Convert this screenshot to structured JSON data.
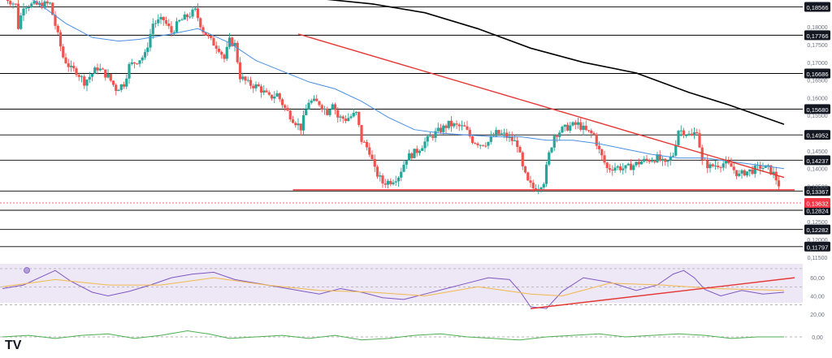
{
  "chart_data": [
    {
      "type": "candlestick",
      "panel": "price",
      "ylim": [
        0.1138,
        0.1876
      ],
      "y_axis_ticks": [
        "0,18000",
        "0,17500",
        "0,17000",
        "0,16500",
        "0,16000",
        "0,15500",
        "0,14500",
        "0,14000",
        "0,13500",
        "0,13000",
        "0,12500",
        "0,12000",
        "0,11500"
      ],
      "levels": [
        {
          "label": "0,18566",
          "value": 0.18566
        },
        {
          "label": "0,17766",
          "value": 0.17766
        },
        {
          "label": "0,16686",
          "value": 0.16686
        },
        {
          "label": "0,15680",
          "value": 0.1568
        },
        {
          "label": "0,14952",
          "value": 0.14952
        },
        {
          "label": "0,14237",
          "value": 0.14237
        },
        {
          "label": "0,13367",
          "value": 0.13367
        },
        {
          "label": "0,12824",
          "value": 0.12824
        },
        {
          "label": "0,12282",
          "value": 0.12282
        },
        {
          "label": "0,11797",
          "value": 0.11797
        }
      ],
      "current_price": {
        "label": "0,13632",
        "value": 0.13632
      },
      "bars": 220,
      "anchors": [
        [
          0,
          0.189
        ],
        [
          5,
          0.1862
        ],
        [
          6,
          0.18
        ],
        [
          8,
          0.1862
        ],
        [
          14,
          0.1862
        ],
        [
          18,
          0.1865
        ],
        [
          20,
          0.1805
        ],
        [
          23,
          0.1715
        ],
        [
          26,
          0.168
        ],
        [
          28,
          0.1675
        ],
        [
          31,
          0.1645
        ],
        [
          33,
          0.166
        ],
        [
          36,
          0.1685
        ],
        [
          40,
          0.166
        ],
        [
          43,
          0.1625
        ],
        [
          46,
          0.164
        ],
        [
          48,
          0.169
        ],
        [
          51,
          0.1705
        ],
        [
          54,
          0.172
        ],
        [
          57,
          0.181
        ],
        [
          61,
          0.182
        ],
        [
          64,
          0.1785
        ],
        [
          67,
          0.1815
        ],
        [
          71,
          0.1835
        ],
        [
          73,
          0.1845
        ],
        [
          76,
          0.179
        ],
        [
          79,
          0.176
        ],
        [
          82,
          0.174
        ],
        [
          84,
          0.171
        ],
        [
          86,
          0.176
        ],
        [
          88,
          0.175
        ],
        [
          90,
          0.166
        ],
        [
          93,
          0.164
        ],
        [
          97,
          0.163
        ],
        [
          101,
          0.16
        ],
        [
          104,
          0.161
        ],
        [
          107,
          0.157
        ],
        [
          110,
          0.154
        ],
        [
          113,
          0.1515
        ],
        [
          116,
          0.159
        ],
        [
          120,
          0.1585
        ],
        [
          123,
          0.156
        ],
        [
          125,
          0.159
        ],
        [
          127,
          0.1545
        ],
        [
          130,
          0.154
        ],
        [
          134,
          0.1555
        ],
        [
          136,
          0.148
        ],
        [
          139,
          0.145
        ],
        [
          141,
          0.1395
        ],
        [
          144,
          0.136
        ],
        [
          147,
          0.1365
        ],
        [
          150,
          0.138
        ],
        [
          153,
          0.143
        ],
        [
          157,
          0.145
        ],
        [
          160,
          0.1475
        ],
        [
          163,
          0.1495
        ],
        [
          166,
          0.151
        ],
        [
          169,
          0.1525
        ],
        [
          172,
          0.152
        ],
        [
          175,
          0.1515
        ],
        [
          178,
          0.148
        ],
        [
          181,
          0.147
        ],
        [
          184,
          0.1475
        ],
        [
          187,
          0.15
        ],
        [
          190,
          0.1495
        ],
        [
          193,
          0.148
        ],
        [
          195,
          0.147
        ],
        [
          197,
          0.14
        ],
        [
          199,
          0.136
        ],
        [
          201,
          0.1345
        ],
        [
          203,
          0.135
        ],
        [
          205,
          0.1365
        ],
        [
          207,
          0.144
        ],
        [
          209,
          0.1495
        ],
        [
          212,
          0.151
        ],
        [
          215,
          0.152
        ],
        [
          218,
          0.1525
        ],
        [
          221,
          0.1505
        ],
        [
          224,
          0.1495
        ],
        [
          226,
          0.145
        ],
        [
          229,
          0.14
        ],
        [
          232,
          0.1405
        ],
        [
          236,
          0.14
        ],
        [
          239,
          0.141
        ],
        [
          242,
          0.142
        ],
        [
          245,
          0.1425
        ],
        [
          248,
          0.143
        ],
        [
          251,
          0.141
        ],
        [
          254,
          0.144
        ],
        [
          256,
          0.151
        ],
        [
          258,
          0.1505
        ],
        [
          261,
          0.149
        ],
        [
          263,
          0.151
        ],
        [
          265,
          0.142
        ],
        [
          268,
          0.1405
        ],
        [
          270,
          0.141
        ],
        [
          273,
          0.1415
        ],
        [
          276,
          0.1405
        ],
        [
          279,
          0.138
        ],
        [
          281,
          0.139
        ],
        [
          284,
          0.1395
        ],
        [
          287,
          0.1405
        ],
        [
          290,
          0.14
        ],
        [
          292,
          0.1385
        ],
        [
          294,
          0.1355
        ],
        [
          296,
          0.1365
        ]
      ],
      "ma_blue": [
        [
          3,
          0.1895
        ],
        [
          12,
          0.1875
        ],
        [
          24,
          0.181
        ],
        [
          34,
          0.177
        ],
        [
          44,
          0.176
        ],
        [
          52,
          0.1765
        ],
        [
          64,
          0.178
        ],
        [
          74,
          0.1795
        ],
        [
          86,
          0.1755
        ],
        [
          96,
          0.1705
        ],
        [
          106,
          0.1675
        ],
        [
          116,
          0.1645
        ],
        [
          126,
          0.1625
        ],
        [
          136,
          0.159
        ],
        [
          146,
          0.1545
        ],
        [
          156,
          0.151
        ],
        [
          166,
          0.15
        ],
        [
          176,
          0.1495
        ],
        [
          186,
          0.149
        ],
        [
          196,
          0.149
        ],
        [
          206,
          0.148
        ],
        [
          216,
          0.148
        ],
        [
          226,
          0.147
        ],
        [
          236,
          0.1455
        ],
        [
          246,
          0.144
        ],
        [
          256,
          0.143
        ],
        [
          266,
          0.143
        ],
        [
          276,
          0.142
        ],
        [
          286,
          0.141
        ],
        [
          296,
          0.14
        ]
      ],
      "ma_black": [
        [
          120,
          0.188
        ],
        [
          140,
          0.1865
        ],
        [
          160,
          0.184
        ],
        [
          180,
          0.1795
        ],
        [
          200,
          0.174
        ],
        [
          220,
          0.17
        ],
        [
          240,
          0.167
        ],
        [
          260,
          0.1615
        ],
        [
          275,
          0.158
        ],
        [
          296,
          0.1525
        ]
      ],
      "trend_lines": [
        {
          "from": [
            112,
            0.178
          ],
          "to": [
            296,
            0.1375
          ]
        },
        {
          "from": [
            110,
            0.134
          ],
          "to": [
            300,
            0.134
          ]
        }
      ]
    },
    {
      "type": "line",
      "panel": "RSI",
      "ylim": [
        10,
        78
      ],
      "y_axis_ticks": [
        "60,00",
        "40,00",
        "20,00"
      ],
      "band": [
        30,
        70
      ],
      "series": [
        {
          "color": "#7e57c2",
          "points": [
            [
              0,
              48
            ],
            [
              8,
              52
            ],
            [
              14,
              60
            ],
            [
              20,
              68
            ],
            [
              26,
              56
            ],
            [
              34,
              44
            ],
            [
              40,
              40
            ],
            [
              48,
              45
            ],
            [
              56,
              52
            ],
            [
              64,
              60
            ],
            [
              72,
              64
            ],
            [
              80,
              66
            ],
            [
              88,
              58
            ],
            [
              96,
              54
            ],
            [
              104,
              50
            ],
            [
              112,
              46
            ],
            [
              120,
              42
            ],
            [
              128,
              48
            ],
            [
              136,
              44
            ],
            [
              144,
              38
            ],
            [
              152,
              36
            ],
            [
              160,
              42
            ],
            [
              168,
              48
            ],
            [
              176,
              54
            ],
            [
              184,
              60
            ],
            [
              192,
              58
            ],
            [
              196,
              45
            ],
            [
              200,
              28
            ],
            [
              206,
              26
            ],
            [
              212,
              45
            ],
            [
              220,
              60
            ],
            [
              230,
              55
            ],
            [
              240,
              46
            ],
            [
              248,
              52
            ],
            [
              254,
              64
            ],
            [
              258,
              68
            ],
            [
              262,
              60
            ],
            [
              266,
              47
            ],
            [
              272,
              40
            ],
            [
              280,
              46
            ],
            [
              288,
              42
            ],
            [
              296,
              44
            ]
          ]
        },
        {
          "color": "#f2b84b",
          "points": [
            [
              0,
              50
            ],
            [
              20,
              58
            ],
            [
              40,
              52
            ],
            [
              60,
              52
            ],
            [
              80,
              60
            ],
            [
              100,
              52
            ],
            [
              120,
              46
            ],
            [
              140,
              44
            ],
            [
              160,
              40
            ],
            [
              180,
              50
            ],
            [
              200,
              42
            ],
            [
              212,
              40
            ],
            [
              230,
              54
            ],
            [
              250,
              52
            ],
            [
              270,
              48
            ],
            [
              296,
              46
            ]
          ]
        }
      ],
      "trend_lines": [
        {
          "from": [
            200,
            26
          ],
          "to": [
            300,
            60
          ]
        }
      ]
    },
    {
      "type": "line",
      "panel": "oscillator",
      "ylim": [
        -8,
        8
      ],
      "y_axis_ticks": [
        "0,00"
      ],
      "series": [
        {
          "color": "#4caf50",
          "points": [
            [
              0,
              0
            ],
            [
              10,
              1
            ],
            [
              20,
              -1
            ],
            [
              30,
              1
            ],
            [
              40,
              2
            ],
            [
              50,
              -1
            ],
            [
              60,
              1
            ],
            [
              70,
              4
            ],
            [
              78,
              2
            ],
            [
              86,
              -1
            ],
            [
              96,
              0
            ],
            [
              106,
              1
            ],
            [
              116,
              -1
            ],
            [
              126,
              1
            ],
            [
              136,
              -2
            ],
            [
              146,
              -1
            ],
            [
              156,
              1
            ],
            [
              166,
              2
            ],
            [
              176,
              0
            ],
            [
              186,
              -1
            ],
            [
              196,
              -2
            ],
            [
              206,
              0
            ],
            [
              216,
              1
            ],
            [
              226,
              2
            ],
            [
              236,
              0
            ],
            [
              246,
              1
            ],
            [
              256,
              2
            ],
            [
              266,
              1
            ],
            [
              276,
              -1
            ],
            [
              286,
              0
            ],
            [
              296,
              0
            ]
          ]
        }
      ]
    }
  ],
  "colors": {
    "up": "#26a69a",
    "down": "#ef5350",
    "ma_blue": "#4a90e2",
    "ma_black": "#000000",
    "trend": "#e53935",
    "level": "#000000",
    "price_label": "#f23645"
  },
  "logo_text": "TV"
}
